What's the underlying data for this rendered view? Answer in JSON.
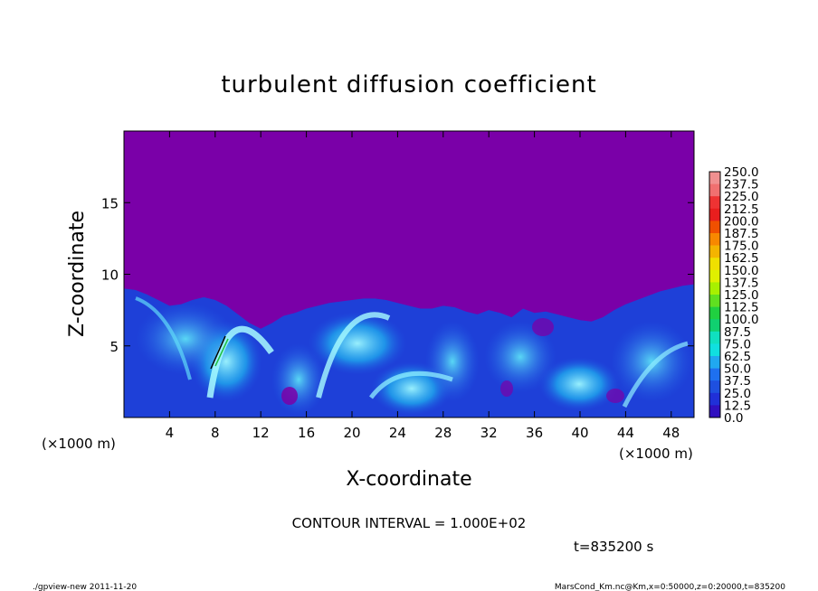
{
  "chart_data": {
    "type": "heatmap",
    "title": "turbulent diffusion coefficient",
    "xlabel": "X-coordinate",
    "ylabel": "Z-coordinate",
    "x_unit": "(×1000 m)",
    "y_unit": "(×1000 m)",
    "xlim": [
      0,
      50
    ],
    "ylim": [
      0,
      20
    ],
    "x_ticks": [
      4,
      8,
      12,
      16,
      20,
      24,
      28,
      32,
      36,
      40,
      44,
      48
    ],
    "y_ticks": [
      5,
      10,
      15
    ],
    "colorbar": {
      "levels": [
        "250.0",
        "237.5",
        "225.0",
        "212.5",
        "200.0",
        "187.5",
        "175.0",
        "162.5",
        "150.0",
        "137.5",
        "125.0",
        "112.5",
        "100.0",
        "87.5",
        "75.0",
        "62.5",
        "50.0",
        "37.5",
        "25.0",
        "12.5",
        "0.0"
      ],
      "colors": [
        "#f09090",
        "#f07070",
        "#ee3333",
        "#e81e1e",
        "#f05000",
        "#f88800",
        "#f4b400",
        "#f0e000",
        "#e0f000",
        "#a8f000",
        "#60e020",
        "#20d040",
        "#10d070",
        "#10e0c0",
        "#10e0e0",
        "#20a8f0",
        "#1e70f0",
        "#1e50e0",
        "#2030d8",
        "#3010c0"
      ],
      "background_color": "#7a00a8"
    },
    "contour_interval": "CONTOUR INTERVAL = 1.000E+02",
    "time_label": "t=835200 s",
    "footer_left": "./gpview-new  2011-11-20",
    "footer_right": "MarsCond_Km.nc@Km,x=0:50000,z=0:20000,t=835200",
    "boundary_layer_top_km": [
      [
        0,
        9.0
      ],
      [
        1,
        8.9
      ],
      [
        2,
        8.6
      ],
      [
        3,
        8.2
      ],
      [
        4,
        7.8
      ],
      [
        5,
        7.9
      ],
      [
        6,
        8.2
      ],
      [
        7,
        8.4
      ],
      [
        8,
        8.2
      ],
      [
        9,
        7.8
      ],
      [
        10,
        7.2
      ],
      [
        11,
        6.6
      ],
      [
        12,
        6.2
      ],
      [
        13,
        6.6
      ],
      [
        14,
        7.1
      ],
      [
        15,
        7.3
      ],
      [
        16,
        7.6
      ],
      [
        17,
        7.8
      ],
      [
        18,
        8.0
      ],
      [
        19,
        8.1
      ],
      [
        20,
        8.2
      ],
      [
        21,
        8.3
      ],
      [
        22,
        8.3
      ],
      [
        23,
        8.2
      ],
      [
        24,
        8.0
      ],
      [
        25,
        7.8
      ],
      [
        26,
        7.6
      ],
      [
        27,
        7.6
      ],
      [
        28,
        7.8
      ],
      [
        29,
        7.7
      ],
      [
        30,
        7.4
      ],
      [
        31,
        7.2
      ],
      [
        32,
        7.5
      ],
      [
        33,
        7.3
      ],
      [
        34,
        7.0
      ],
      [
        35,
        7.6
      ],
      [
        36,
        7.3
      ],
      [
        37,
        7.4
      ],
      [
        38,
        7.2
      ],
      [
        39,
        7.0
      ],
      [
        40,
        6.8
      ],
      [
        41,
        6.7
      ],
      [
        42,
        7.0
      ],
      [
        43,
        7.5
      ],
      [
        44,
        7.9
      ],
      [
        45,
        8.2
      ],
      [
        46,
        8.5
      ],
      [
        47,
        8.8
      ],
      [
        48,
        9.0
      ],
      [
        49,
        9.2
      ],
      [
        50,
        9.3
      ]
    ]
  }
}
